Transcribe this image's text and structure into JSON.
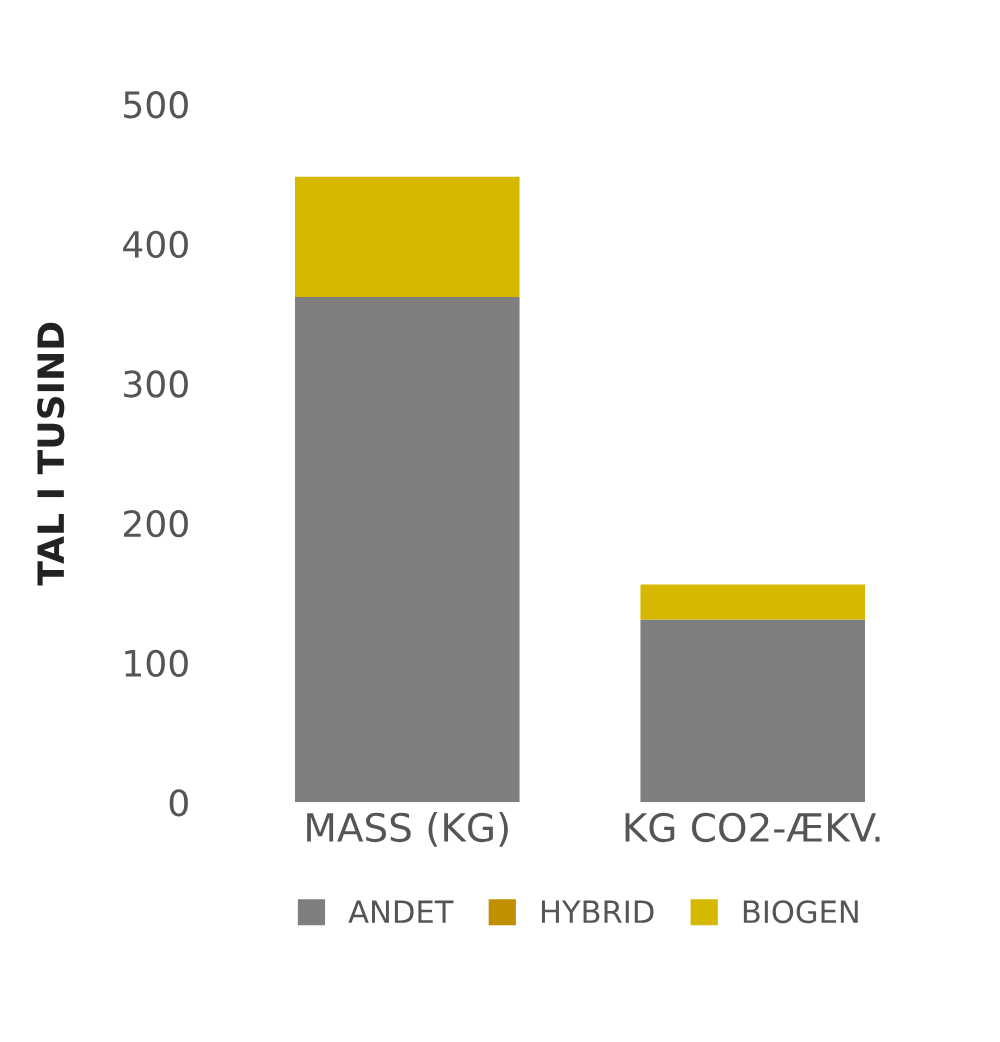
{
  "chart_data": {
    "type": "bar",
    "stacked": true,
    "ylabel": "TAL I TUSIND",
    "categories": [
      "MASS (KG)",
      "KG CO2-ÆKV."
    ],
    "series": [
      {
        "name": "ANDET",
        "color": "#7f7f7f",
        "values": [
          362,
          131
        ]
      },
      {
        "name": "HYBRID",
        "color": "#c09000",
        "values": [
          0,
          0
        ]
      },
      {
        "name": "BIOGEN",
        "color": "#d6b800",
        "values": [
          86,
          25
        ]
      }
    ],
    "ylim": [
      0,
      500
    ],
    "yticks": [
      0,
      100,
      200,
      300,
      400,
      500
    ],
    "grid": false,
    "legend": "bottom"
  }
}
